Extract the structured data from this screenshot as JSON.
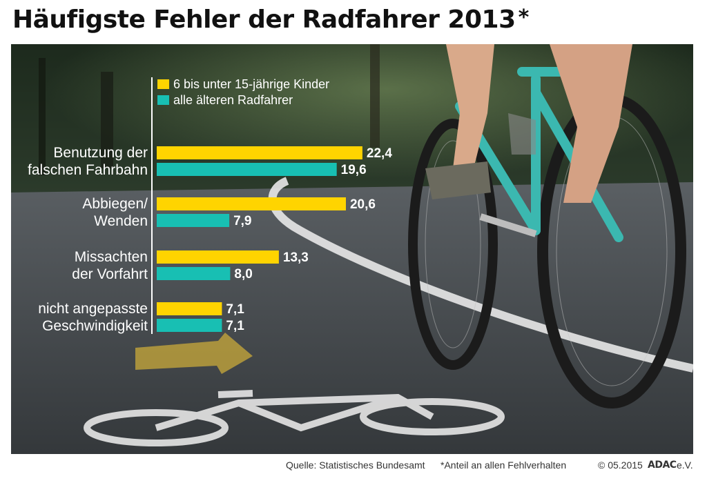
{
  "title": "Häufigste Fehler der Radfahrer 2013",
  "title_marker": "*",
  "colors": {
    "kids": "#ffd400",
    "adults": "#18bfb3",
    "label_text": "#ffffff",
    "value_text": "#ffffff"
  },
  "chart_data": {
    "type": "bar",
    "orientation": "horizontal",
    "categories": [
      [
        "Benutzung der",
        "falschen Fahrbahn"
      ],
      [
        "Abbiegen/",
        "Wenden"
      ],
      [
        "Missachten",
        "der Vorfahrt"
      ],
      [
        "nicht angepasste",
        "Geschwindigkeit"
      ]
    ],
    "series": [
      {
        "name": "6 bis unter 15-jährige Kinder",
        "values": [
          22.4,
          20.6,
          13.3,
          7.1
        ]
      },
      {
        "name": "alle älteren Radfahrer",
        "values": [
          19.6,
          7.9,
          8.0,
          7.1
        ]
      }
    ],
    "value_labels": [
      [
        "22,4",
        "20,6",
        "13,3",
        "7,1"
      ],
      [
        "19,6",
        "7,9",
        "8,0",
        "7,1"
      ]
    ],
    "unit": "%",
    "legend": "top",
    "grid": false
  },
  "footer": {
    "source": "Quelle: Statistisches Bundesamt",
    "note": "*Anteil an allen Fehlverhalten",
    "copyright": "© 05.2015",
    "brand": "ADAC",
    "brand_suffix": "e.V."
  }
}
